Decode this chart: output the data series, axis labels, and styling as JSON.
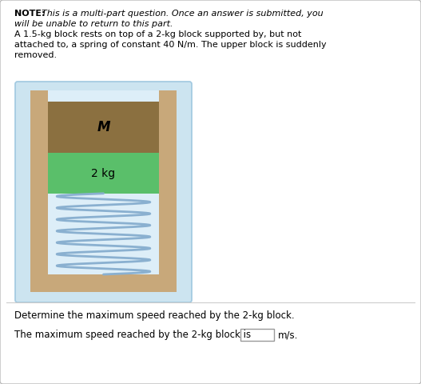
{
  "background_color": "#ffffff",
  "diagram_bg": "#cce4f0",
  "diagram_border": "#a0c8e0",
  "wall_color": "#c8a87a",
  "inner_bg": "#ddeef8",
  "block_M_color": "#8b7040",
  "block_M_label": "M",
  "block_2kg_color": "#5abf6a",
  "block_2kg_label": "2 kg",
  "spring_color": "#8ab0d0",
  "bottom_text1": "Determine the maximum speed reached by the 2-kg block.",
  "bottom_text2": "The maximum speed reached by the 2-kg block is",
  "bottom_unit": "m/s.",
  "box_color": "#ffffff",
  "box_border": "#999999",
  "outer_border_color": "#bbbbbb",
  "text_color": "#000000",
  "note_prefix": "NOTE: ",
  "note_italic1": "This is a multi-part question. Once an answer is submitted, you",
  "note_italic2": "will be unable to return to this part.",
  "problem_line1": "A 1.5-kg block rests on top of a 2-kg block supported by, but not",
  "problem_line2": "attached to, a spring of constant 40 N/m. The upper block is suddenly",
  "problem_line3": "removed."
}
